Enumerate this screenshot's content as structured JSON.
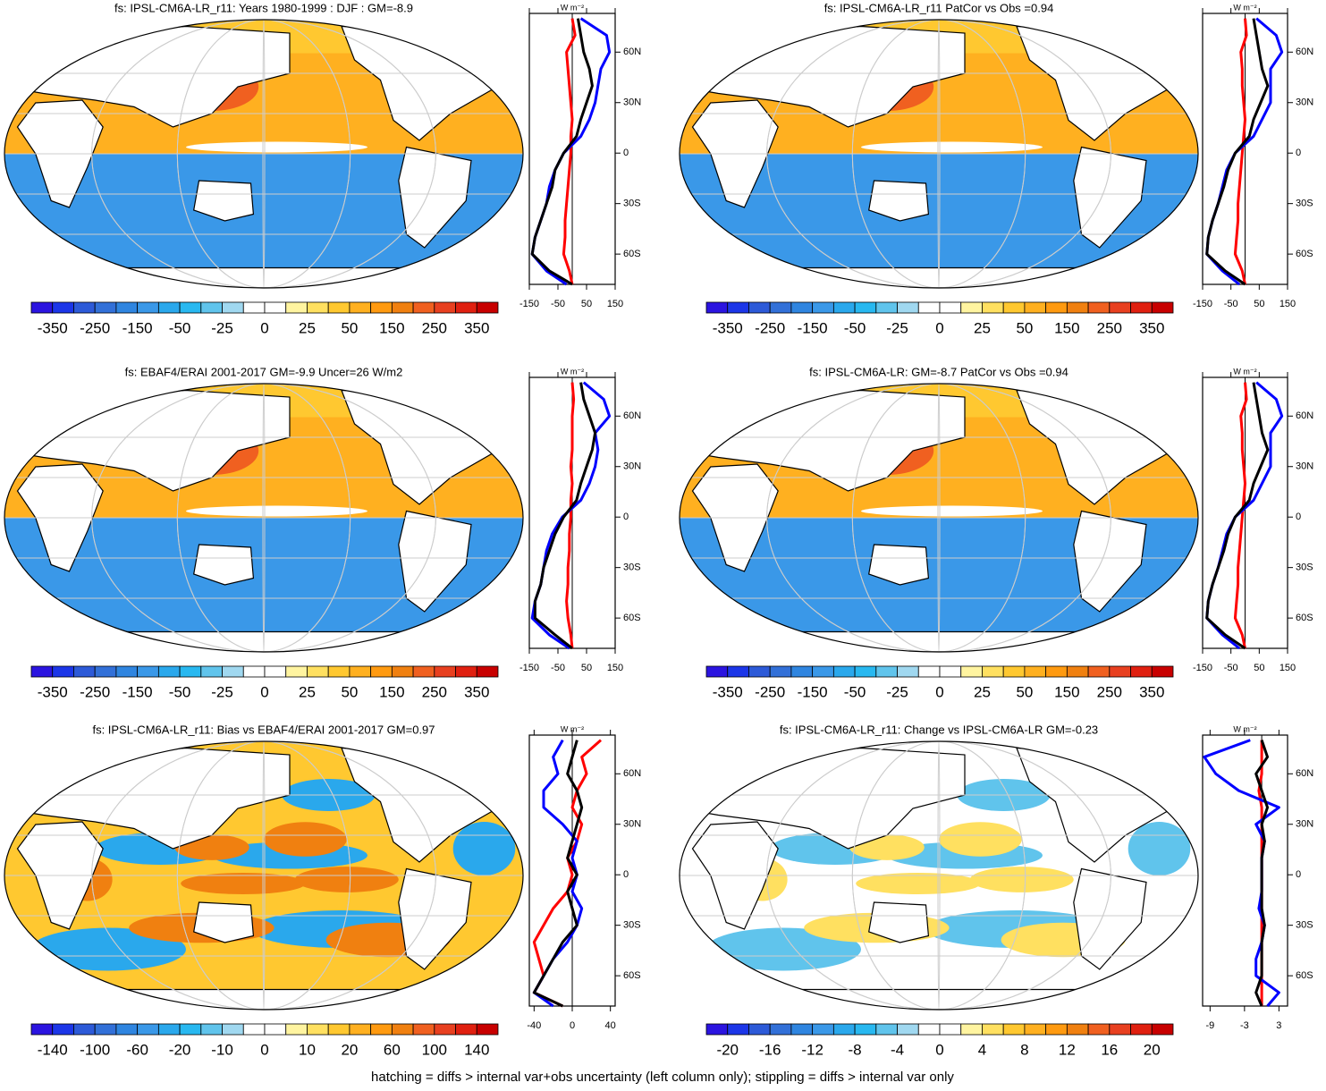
{
  "footnote": "hatching = diffs > internal var+obs uncertainty (left column only); stippling = diffs > internal var only",
  "colors": [
    "#2b14e0",
    "#1c36e8",
    "#2d5ad8",
    "#3270d8",
    "#2f85e0",
    "#3a98e8",
    "#2aa8ec",
    "#28b8f0",
    "#60c4ec",
    "#a0d8f0",
    "#ffffff",
    "#ffffff",
    "#fff4a0",
    "#ffe060",
    "#ffc830",
    "#ffb020",
    "#ff9a10",
    "#f08010",
    "#f06020",
    "#e84020",
    "#e02010",
    "#c80000"
  ],
  "profile_unit": "W m⁻²",
  "lat": [
    80,
    70,
    60,
    50,
    40,
    30,
    20,
    10,
    0,
    -10,
    -20,
    -30,
    -40,
    -50,
    -60,
    -70,
    -78
  ],
  "ylim": [
    -78,
    83
  ],
  "lat_ticks": [
    {
      "value": 60,
      "label": "60N"
    },
    {
      "value": 30,
      "label": "30N"
    },
    {
      "value": 0,
      "label": "0"
    },
    {
      "value": -30,
      "label": "30S"
    },
    {
      "value": -60,
      "label": "60S"
    }
  ],
  "panels": [
    {
      "type": "map",
      "title": "fs: IPSL-CM6A-LR_r11: Years 1980-1999 : DJF : GM=-8.9",
      "colorbar": [
        -350,
        -250,
        -150,
        -50,
        -25,
        0,
        25,
        50,
        150,
        250,
        350
      ],
      "xlim": [
        -150,
        150
      ],
      "xticks": [
        -150,
        -50,
        50,
        150
      ],
      "series": [
        {
          "color": "#ff0000",
          "values": [
            0,
            10,
            -20,
            -15,
            -10,
            -5,
            0,
            -5,
            -5,
            -10,
            -15,
            -20,
            -25,
            -25,
            -30,
            -10,
            0
          ]
        },
        {
          "color": "#0000ff",
          "values": [
            30,
            120,
            130,
            100,
            90,
            80,
            60,
            30,
            -30,
            -60,
            -80,
            -90,
            -110,
            -130,
            -140,
            -90,
            -20
          ]
        },
        {
          "color": "#000000",
          "values": [
            20,
            30,
            40,
            60,
            70,
            50,
            30,
            15,
            -30,
            -60,
            -70,
            -90,
            -110,
            -130,
            -140,
            -80,
            0
          ]
        }
      ]
    },
    {
      "type": "map",
      "title": "fs: IPSL-CM6A-LR_r11 PatCor vs Obs =0.94",
      "colorbar": [
        -350,
        -250,
        -150,
        -50,
        -25,
        0,
        25,
        50,
        150,
        250,
        350
      ],
      "xlim": [
        -150,
        150
      ],
      "xticks": [
        -150,
        -50,
        50,
        150
      ],
      "series": [
        {
          "color": "#ff0000",
          "values": [
            0,
            5,
            -15,
            -10,
            -10,
            -5,
            0,
            -5,
            -10,
            -15,
            -20,
            -25,
            -25,
            -30,
            -35,
            -10,
            0
          ]
        },
        {
          "color": "#0000ff",
          "values": [
            40,
            110,
            130,
            90,
            90,
            90,
            60,
            30,
            -35,
            -65,
            -80,
            -95,
            -115,
            -130,
            -135,
            -80,
            -20
          ]
        },
        {
          "color": "#000000",
          "values": [
            30,
            40,
            50,
            60,
            80,
            55,
            30,
            15,
            -35,
            -60,
            -75,
            -95,
            -115,
            -130,
            -135,
            -70,
            0
          ]
        }
      ]
    },
    {
      "type": "map",
      "title": "fs: EBAF4/ERAI 2001-2017 GM=-9.9 Uncer=26 W/m2",
      "colorbar": [
        -350,
        -250,
        -150,
        -50,
        -25,
        0,
        25,
        50,
        150,
        250,
        350
      ],
      "xlim": [
        -150,
        150
      ],
      "xticks": [
        -150,
        -50,
        50,
        150
      ],
      "series": [
        {
          "color": "#ff0000",
          "values": [
            0,
            5,
            0,
            0,
            0,
            -5,
            0,
            -5,
            -5,
            -10,
            -10,
            -15,
            -15,
            -20,
            -15,
            -5,
            0
          ]
        },
        {
          "color": "#0000ff",
          "values": [
            40,
            110,
            130,
            80,
            90,
            80,
            60,
            30,
            -35,
            -70,
            -90,
            -100,
            -110,
            -130,
            -140,
            -80,
            -10
          ]
        },
        {
          "color": "#000000",
          "values": [
            30,
            40,
            60,
            80,
            70,
            50,
            30,
            15,
            -30,
            -60,
            -80,
            -100,
            -110,
            -130,
            -130,
            -60,
            0
          ]
        }
      ]
    },
    {
      "type": "map",
      "title": "fs: IPSL-CM6A-LR: GM=-8.7 PatCor vs Obs =0.94",
      "colorbar": [
        -350,
        -250,
        -150,
        -50,
        -25,
        0,
        25,
        50,
        150,
        250,
        350
      ],
      "xlim": [
        -150,
        150
      ],
      "xticks": [
        -150,
        -50,
        50,
        150
      ],
      "series": [
        {
          "color": "#ff0000",
          "values": [
            0,
            5,
            -15,
            -10,
            -10,
            -5,
            0,
            -5,
            -10,
            -15,
            -20,
            -25,
            -25,
            -30,
            -35,
            -10,
            0
          ]
        },
        {
          "color": "#0000ff",
          "values": [
            40,
            110,
            130,
            90,
            90,
            90,
            60,
            30,
            -35,
            -65,
            -80,
            -95,
            -115,
            -130,
            -135,
            -80,
            -20
          ]
        },
        {
          "color": "#000000",
          "values": [
            30,
            40,
            50,
            60,
            80,
            55,
            30,
            15,
            -35,
            -60,
            -75,
            -95,
            -115,
            -130,
            -135,
            -70,
            0
          ]
        }
      ]
    },
    {
      "type": "map",
      "title": "fs: IPSL-CM6A-LR_r11: Bias vs EBAF4/ERAI 2001-2017 GM=0.97",
      "colorbar": [
        -140,
        -100,
        -60,
        -20,
        -10,
        0,
        10,
        20,
        60,
        100,
        140
      ],
      "xlim": [
        -45,
        45
      ],
      "xticks": [
        -40,
        0,
        40
      ],
      "series": [
        {
          "color": "#ff0000",
          "values": [
            30,
            10,
            15,
            5,
            0,
            10,
            5,
            -5,
            0,
            -5,
            -20,
            -30,
            -40,
            -35,
            -30,
            -40,
            -10
          ]
        },
        {
          "color": "#0000ff",
          "values": [
            -10,
            -20,
            -15,
            -30,
            -30,
            -10,
            5,
            0,
            5,
            0,
            10,
            5,
            -5,
            -20,
            -30,
            -40,
            -20
          ]
        },
        {
          "color": "#000000",
          "values": [
            5,
            0,
            -5,
            5,
            10,
            5,
            0,
            -5,
            5,
            -5,
            0,
            5,
            -10,
            -20,
            -30,
            -40,
            -10
          ]
        }
      ]
    },
    {
      "type": "map",
      "title": "fs: IPSL-CM6A-LR_r11: Change vs IPSL-CM6A-LR GM=-0.23",
      "colorbar": [
        -20,
        -16,
        -12,
        -8,
        -4,
        0,
        4,
        8,
        12,
        16,
        20
      ],
      "xlim": [
        -10.3,
        4.5
      ],
      "xticks": [
        -9,
        -3,
        3
      ],
      "series": [
        {
          "color": "#ff0000",
          "values": [
            0,
            0,
            0,
            -0.5,
            0,
            0,
            0,
            0,
            0,
            0,
            0,
            0,
            0,
            0,
            0,
            0,
            0
          ]
        },
        {
          "color": "#0000ff",
          "values": [
            -2,
            -10,
            -8,
            -4,
            3,
            -1,
            0.5,
            0,
            0,
            0,
            -0.5,
            0.5,
            0,
            -1,
            -1,
            3,
            1
          ]
        },
        {
          "color": "#000000",
          "values": [
            0,
            1,
            -1,
            0,
            1,
            0,
            0.5,
            0,
            0,
            0,
            0,
            0.5,
            0,
            0,
            0,
            -1,
            0
          ]
        }
      ]
    }
  ]
}
